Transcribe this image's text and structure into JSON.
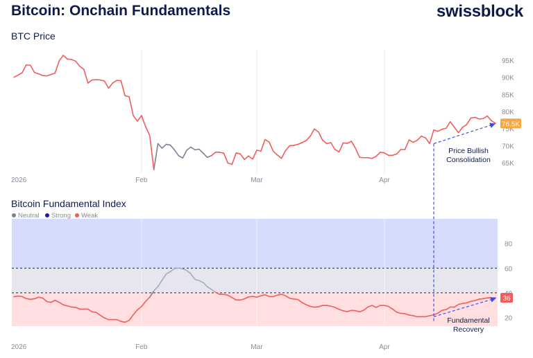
{
  "header": {
    "title": "Bitcoin: Onchain Fundamentals",
    "brand": "swissblock"
  },
  "colors": {
    "weak": "#f25c5c",
    "neutral": "#7f8096",
    "strong": "#1a1aa8",
    "annotation": "#3a4ee0",
    "price_badge": "#f5a742",
    "index_badge": "#f25c5c",
    "strong_band": "#d5dcfd",
    "neutral_band": "#e6e7ee",
    "weak_band": "#ffdfe0",
    "grid": "#e8e8ee",
    "axis_text": "#8a8a9a",
    "label_dark": "#0d1b4c"
  },
  "chart_data": [
    {
      "type": "line",
      "title": "BTC Price",
      "ylim": [
        62,
        98
      ],
      "y_ticks": [
        {
          "value": 95,
          "label": "95K"
        },
        {
          "value": 90,
          "label": "90K"
        },
        {
          "value": 85,
          "label": "85K"
        },
        {
          "value": 80,
          "label": "80K"
        },
        {
          "value": 75,
          "label": "75K"
        },
        {
          "value": 70,
          "label": "70K"
        },
        {
          "value": 65,
          "label": "65K"
        }
      ],
      "x_ticks": [
        {
          "day": 0,
          "label": "2026"
        },
        {
          "day": 31,
          "label": "Feb"
        },
        {
          "day": 59,
          "label": "Mar"
        },
        {
          "day": 90,
          "label": "Apr"
        }
      ],
      "x_range": [
        0,
        117
      ],
      "last_value_label": "76.5K",
      "points": [
        [
          0,
          90.0,
          "w"
        ],
        [
          1,
          90.6,
          "w"
        ],
        [
          2,
          91.3,
          "w"
        ],
        [
          3,
          93.6,
          "w"
        ],
        [
          4,
          93.5,
          "w"
        ],
        [
          5,
          91.4,
          "w"
        ],
        [
          6,
          91.0,
          "w"
        ],
        [
          7,
          90.5,
          "w"
        ],
        [
          8,
          90.4,
          "w"
        ],
        [
          9,
          90.8,
          "w"
        ],
        [
          10,
          91.2,
          "w"
        ],
        [
          11,
          94.8,
          "w"
        ],
        [
          12,
          96.4,
          "w"
        ],
        [
          13,
          95.3,
          "w"
        ],
        [
          14,
          95.2,
          "w"
        ],
        [
          15,
          94.7,
          "w"
        ],
        [
          16,
          93.2,
          "w"
        ],
        [
          17,
          92.3,
          "w"
        ],
        [
          18,
          88.3,
          "w"
        ],
        [
          19,
          89.2,
          "w"
        ],
        [
          20,
          89.3,
          "w"
        ],
        [
          21,
          89.2,
          "w"
        ],
        [
          22,
          88.9,
          "w"
        ],
        [
          23,
          86.8,
          "w"
        ],
        [
          24,
          88.3,
          "w"
        ],
        [
          25,
          89.1,
          "w"
        ],
        [
          26,
          89.0,
          "w"
        ],
        [
          27,
          84.6,
          "w"
        ],
        [
          28,
          84.3,
          "w"
        ],
        [
          29,
          78.8,
          "w"
        ],
        [
          30,
          77.2,
          "w"
        ],
        [
          31,
          78.8,
          "w"
        ],
        [
          32,
          75.6,
          "w"
        ],
        [
          33,
          73.0,
          "w"
        ],
        [
          34,
          63.0,
          "w"
        ],
        [
          35,
          70.6,
          "n"
        ],
        [
          36,
          69.3,
          "n"
        ],
        [
          37,
          70.4,
          "n"
        ],
        [
          38,
          70.2,
          "n"
        ],
        [
          39,
          68.8,
          "n"
        ],
        [
          40,
          67.1,
          "n"
        ],
        [
          41,
          66.4,
          "n"
        ],
        [
          42,
          68.7,
          "n"
        ],
        [
          43,
          69.6,
          "n"
        ],
        [
          44,
          68.8,
          "n"
        ],
        [
          45,
          69.0,
          "n"
        ],
        [
          46,
          67.8,
          "n"
        ],
        [
          47,
          66.6,
          "n"
        ],
        [
          48,
          67.1,
          "w"
        ],
        [
          49,
          68.1,
          "w"
        ],
        [
          50,
          68.1,
          "w"
        ],
        [
          51,
          67.8,
          "w"
        ],
        [
          52,
          64.9,
          "w"
        ],
        [
          53,
          64.6,
          "w"
        ],
        [
          54,
          67.9,
          "w"
        ],
        [
          55,
          67.6,
          "w"
        ],
        [
          56,
          66.0,
          "w"
        ],
        [
          57,
          67.0,
          "w"
        ],
        [
          58,
          66.1,
          "w"
        ],
        [
          59,
          68.7,
          "w"
        ],
        [
          60,
          68.4,
          "w"
        ],
        [
          61,
          71.8,
          "w"
        ],
        [
          62,
          71.1,
          "w"
        ],
        [
          63,
          68.4,
          "w"
        ],
        [
          64,
          67.3,
          "w"
        ],
        [
          65,
          66.3,
          "w"
        ],
        [
          66,
          68.6,
          "w"
        ],
        [
          67,
          70.0,
          "w"
        ],
        [
          68,
          70.1,
          "w"
        ],
        [
          69,
          70.4,
          "w"
        ],
        [
          70,
          70.9,
          "w"
        ],
        [
          71,
          71.5,
          "w"
        ],
        [
          72,
          72.8,
          "w"
        ],
        [
          73,
          74.9,
          "w"
        ],
        [
          74,
          74.0,
          "w"
        ],
        [
          75,
          71.6,
          "w"
        ],
        [
          76,
          70.6,
          "w"
        ],
        [
          77,
          70.9,
          "w"
        ],
        [
          78,
          68.9,
          "w"
        ],
        [
          79,
          68.2,
          "w"
        ],
        [
          80,
          70.8,
          "w"
        ],
        [
          81,
          70.7,
          "w"
        ],
        [
          82,
          71.3,
          "w"
        ],
        [
          83,
          69.2,
          "w"
        ],
        [
          84,
          66.6,
          "w"
        ],
        [
          85,
          66.5,
          "w"
        ],
        [
          86,
          66.5,
          "w"
        ],
        [
          87,
          66.3,
          "w"
        ],
        [
          88,
          66.9,
          "w"
        ],
        [
          89,
          68.1,
          "w"
        ],
        [
          90,
          67.9,
          "w"
        ],
        [
          91,
          67.2,
          "w"
        ],
        [
          92,
          67.2,
          "w"
        ],
        [
          93,
          67.6,
          "w"
        ],
        [
          94,
          68.9,
          "w"
        ],
        [
          95,
          68.9,
          "w"
        ],
        [
          96,
          71.7,
          "w"
        ],
        [
          97,
          71.0,
          "w"
        ],
        [
          98,
          71.6,
          "w"
        ],
        [
          99,
          72.8,
          "w"
        ],
        [
          100,
          72.3,
          "w"
        ],
        [
          101,
          70.6,
          "w"
        ],
        [
          102,
          74.6,
          "w"
        ],
        [
          103,
          74.2,
          "w"
        ],
        [
          104,
          74.8,
          "w"
        ],
        [
          105,
          75.1,
          "w"
        ],
        [
          106,
          77.0,
          "w"
        ],
        [
          107,
          75.4,
          "w"
        ],
        [
          108,
          73.8,
          "w"
        ],
        [
          109,
          75.4,
          "w"
        ],
        [
          110,
          76.2,
          "w"
        ],
        [
          111,
          78.1,
          "w"
        ],
        [
          112,
          78.3,
          "w"
        ],
        [
          113,
          77.8,
          "w"
        ],
        [
          114,
          77.9,
          "w"
        ],
        [
          115,
          78.7,
          "w"
        ],
        [
          116,
          77.3,
          "w"
        ],
        [
          117,
          76.5,
          "w"
        ]
      ]
    },
    {
      "type": "line",
      "title": "Bitcoin Fundamental Index",
      "legend": [
        {
          "name": "Neutral",
          "key": "neutral"
        },
        {
          "name": "Strong",
          "key": "strong"
        },
        {
          "name": "Weak",
          "key": "weak"
        }
      ],
      "legend_placement": "top-left",
      "ylim": [
        13,
        100
      ],
      "y_ticks": [
        {
          "value": 80,
          "label": "80"
        },
        {
          "value": 60,
          "label": "60"
        },
        {
          "value": 40,
          "label": "40"
        },
        {
          "value": 20,
          "label": "20"
        }
      ],
      "zones": [
        {
          "name": "Strong",
          "from": 60,
          "to": 100
        },
        {
          "name": "Neutral",
          "from": 40,
          "to": 60
        },
        {
          "name": "Weak",
          "from": 13,
          "to": 40
        }
      ],
      "thresholds": [
        60,
        40
      ],
      "x_ticks": [
        {
          "day": 0,
          "label": "2026"
        },
        {
          "day": 31,
          "label": "Feb"
        },
        {
          "day": 59,
          "label": "Mar"
        },
        {
          "day": 90,
          "label": "Apr"
        }
      ],
      "x_range": [
        0,
        117
      ],
      "last_value_label": "36",
      "points": [
        [
          0,
          36.8,
          "w"
        ],
        [
          1,
          37.4,
          "w"
        ],
        [
          2,
          37.0,
          "w"
        ],
        [
          3,
          35.4,
          "w"
        ],
        [
          4,
          34.7,
          "w"
        ],
        [
          5,
          35.2,
          "w"
        ],
        [
          6,
          36.5,
          "w"
        ],
        [
          7,
          35.8,
          "w"
        ],
        [
          8,
          33.0,
          "w"
        ],
        [
          9,
          32.3,
          "w"
        ],
        [
          10,
          33.9,
          "w"
        ],
        [
          11,
          32.3,
          "w"
        ],
        [
          12,
          30.3,
          "w"
        ],
        [
          13,
          29.4,
          "w"
        ],
        [
          14,
          28.5,
          "w"
        ],
        [
          15,
          28.2,
          "w"
        ],
        [
          16,
          26.8,
          "w"
        ],
        [
          17,
          26.8,
          "w"
        ],
        [
          18,
          26.8,
          "w"
        ],
        [
          19,
          24.6,
          "w"
        ],
        [
          20,
          24.1,
          "w"
        ],
        [
          21,
          21.8,
          "w"
        ],
        [
          22,
          19.7,
          "w"
        ],
        [
          23,
          18.3,
          "w"
        ],
        [
          24,
          18.3,
          "w"
        ],
        [
          25,
          18.3,
          "w"
        ],
        [
          26,
          16.9,
          "w"
        ],
        [
          27,
          16.2,
          "w"
        ],
        [
          28,
          17.7,
          "w"
        ],
        [
          29,
          22.2,
          "w"
        ],
        [
          30,
          26.2,
          "w"
        ],
        [
          31,
          28.9,
          "w"
        ],
        [
          32,
          33.0,
          "w"
        ],
        [
          33,
          36.5,
          "w"
        ],
        [
          34,
          41.6,
          "n"
        ],
        [
          35,
          45.1,
          "n"
        ],
        [
          36,
          50.3,
          "n"
        ],
        [
          37,
          55.3,
          "n"
        ],
        [
          38,
          57.2,
          "n"
        ],
        [
          39,
          59.6,
          "n"
        ],
        [
          40,
          60.0,
          "n"
        ],
        [
          41,
          59.5,
          "n"
        ],
        [
          42,
          58.1,
          "n"
        ],
        [
          43,
          55.3,
          "n"
        ],
        [
          44,
          50.9,
          "n"
        ],
        [
          45,
          49.9,
          "n"
        ],
        [
          46,
          48.3,
          "n"
        ],
        [
          47,
          44.9,
          "n"
        ],
        [
          48,
          42.7,
          "n"
        ],
        [
          49,
          40.4,
          "n"
        ],
        [
          50,
          38.8,
          "w"
        ],
        [
          51,
          38.8,
          "w"
        ],
        [
          52,
          38.0,
          "w"
        ],
        [
          53,
          36.2,
          "w"
        ],
        [
          54,
          34.2,
          "w"
        ],
        [
          55,
          34.2,
          "w"
        ],
        [
          56,
          35.1,
          "w"
        ],
        [
          57,
          36.7,
          "w"
        ],
        [
          58,
          37.1,
          "w"
        ],
        [
          59,
          36.5,
          "w"
        ],
        [
          60,
          37.6,
          "w"
        ],
        [
          61,
          38.5,
          "w"
        ],
        [
          62,
          37.0,
          "w"
        ],
        [
          63,
          37.0,
          "w"
        ],
        [
          64,
          38.1,
          "w"
        ],
        [
          65,
          38.8,
          "w"
        ],
        [
          66,
          37.6,
          "w"
        ],
        [
          67,
          35.6,
          "w"
        ],
        [
          68,
          35.0,
          "w"
        ],
        [
          69,
          34.6,
          "w"
        ],
        [
          70,
          32.1,
          "w"
        ],
        [
          71,
          30.4,
          "w"
        ],
        [
          72,
          29.0,
          "w"
        ],
        [
          73,
          28.4,
          "w"
        ],
        [
          74,
          28.7,
          "w"
        ],
        [
          75,
          29.8,
          "w"
        ],
        [
          76,
          29.8,
          "w"
        ],
        [
          77,
          29.2,
          "w"
        ],
        [
          78,
          28.2,
          "w"
        ],
        [
          79,
          26.6,
          "w"
        ],
        [
          80,
          25.4,
          "w"
        ],
        [
          81,
          24.8,
          "w"
        ],
        [
          82,
          25.8,
          "w"
        ],
        [
          83,
          25.5,
          "w"
        ],
        [
          84,
          24.6,
          "w"
        ],
        [
          85,
          26.0,
          "w"
        ],
        [
          86,
          28.5,
          "w"
        ],
        [
          87,
          29.8,
          "w"
        ],
        [
          88,
          28.2,
          "w"
        ],
        [
          89,
          29.8,
          "w"
        ],
        [
          90,
          29.8,
          "w"
        ],
        [
          91,
          29.0,
          "w"
        ],
        [
          92,
          26.8,
          "w"
        ],
        [
          93,
          24.3,
          "w"
        ],
        [
          94,
          23.4,
          "w"
        ],
        [
          95,
          23.1,
          "w"
        ],
        [
          96,
          22.0,
          "w"
        ],
        [
          97,
          21.5,
          "w"
        ],
        [
          98,
          20.6,
          "w"
        ],
        [
          99,
          20.7,
          "w"
        ],
        [
          100,
          20.7,
          "w"
        ],
        [
          101,
          21.5,
          "w"
        ],
        [
          102,
          22.2,
          "w"
        ],
        [
          103,
          23.5,
          "w"
        ],
        [
          104,
          25.8,
          "w"
        ],
        [
          105,
          26.4,
          "w"
        ],
        [
          106,
          28.5,
          "w"
        ],
        [
          107,
          28.4,
          "w"
        ],
        [
          108,
          30.6,
          "w"
        ],
        [
          109,
          31.4,
          "w"
        ],
        [
          110,
          31.8,
          "w"
        ],
        [
          111,
          33.1,
          "w"
        ],
        [
          112,
          33.7,
          "w"
        ],
        [
          113,
          34.9,
          "w"
        ],
        [
          114,
          35.2,
          "w"
        ],
        [
          115,
          35.9,
          "w"
        ],
        [
          116,
          36.0,
          "w"
        ],
        [
          117,
          36.0,
          "w"
        ]
      ]
    }
  ],
  "annotations": {
    "price": "Price Bullish Consolidation",
    "index": "Fundamental Recovery"
  }
}
